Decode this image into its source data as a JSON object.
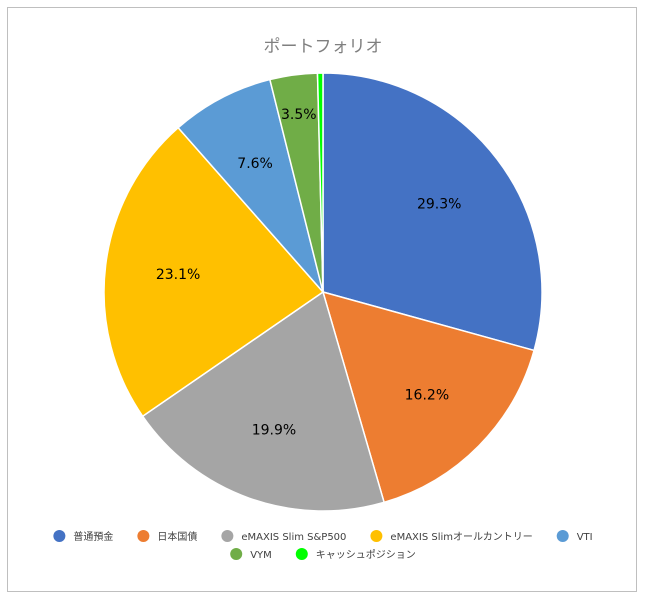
{
  "chart_data": {
    "type": "pie",
    "title": "ポートフォリオ",
    "categories": [
      "普通預金",
      "日本国債",
      "eMAXIS Slim S&P500",
      "eMAXIS Slimオールカントリー",
      "VTI",
      "VYM",
      "キャッシュポジション"
    ],
    "values": [
      29.3,
      16.2,
      19.9,
      23.1,
      7.6,
      3.5,
      0.4
    ],
    "data_labels": [
      "29.3%",
      "16.2%",
      "19.9%",
      "23.1%",
      "7.6%",
      "3.5%",
      ""
    ],
    "colors": [
      "#4472C4",
      "#ED7D31",
      "#A5A5A5",
      "#FFC000",
      "#5B9BD5",
      "#70AD47",
      "#00FF00"
    ],
    "legend_position": "bottom",
    "start_angle": "12 o'clock",
    "direction": "clockwise"
  }
}
